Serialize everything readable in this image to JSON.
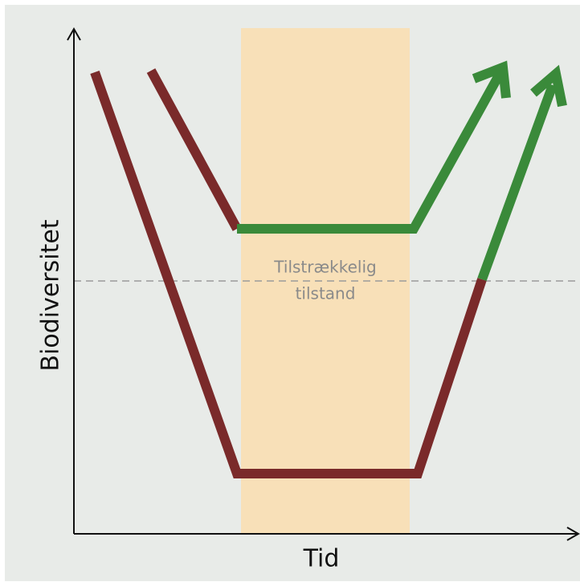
{
  "y_axis_label": "Biodiversitet",
  "x_axis_label": "Tid",
  "threshold_label": [
    "Tilstrækkelig",
    "tilstand"
  ]
}
